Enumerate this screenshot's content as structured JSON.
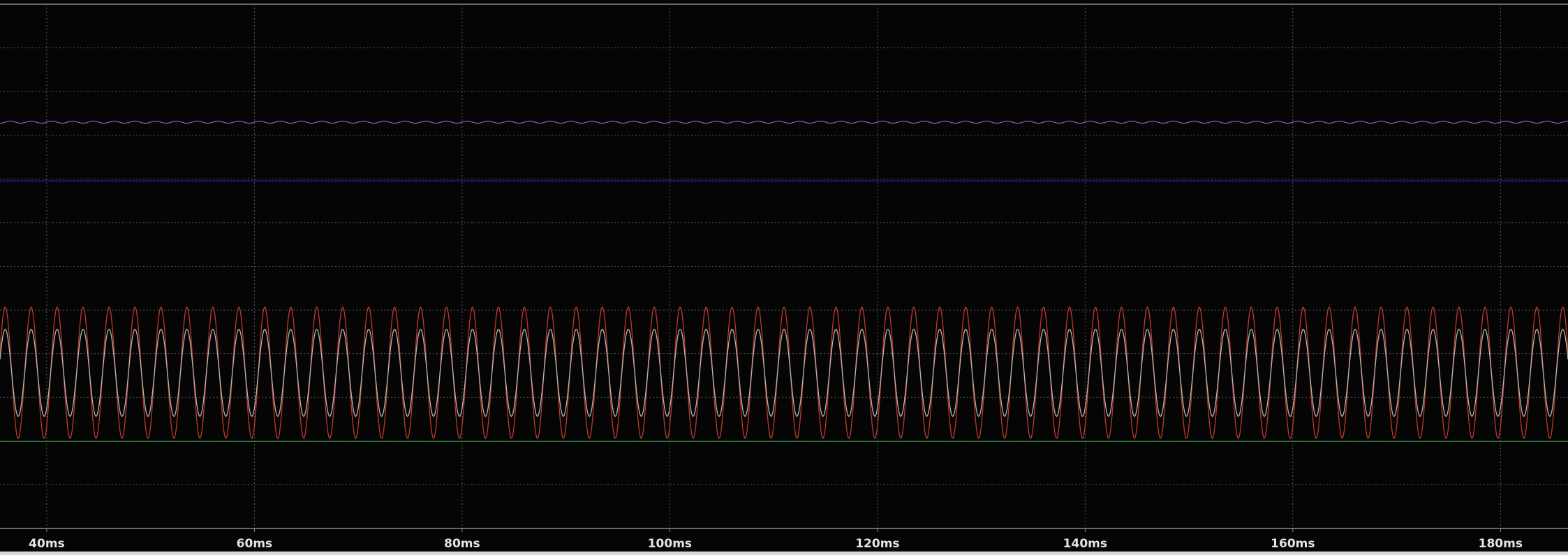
{
  "chart_data": {
    "type": "line",
    "title": "",
    "xlabel": "",
    "ylabel": "",
    "x_unit": "ms",
    "xlim": [
      35.5,
      186.5
    ],
    "x_ticks": [
      40,
      60,
      80,
      100,
      120,
      140,
      160,
      180
    ],
    "x_tick_labels": [
      "40ms",
      "60ms",
      "80ms",
      "100ms",
      "120ms",
      "140ms",
      "160ms",
      "180ms"
    ],
    "grid": true,
    "grid_style": "dotted",
    "series": [
      {
        "color": "#9f5cc0",
        "kind": "ripple",
        "level": 0.775,
        "ripple_amplitude": 0.002,
        "ripple_frequency_per_ms": 0.5
      },
      {
        "color": "#1f1fb8",
        "kind": "flat",
        "level": 0.663
      },
      {
        "color": "#c0392b",
        "kind": "sine",
        "center": 0.297,
        "amplitude": 0.125,
        "period_ms": 2.5,
        "phase_ms": 36.0
      },
      {
        "color": "#b5b5b5",
        "kind": "sine",
        "center": 0.297,
        "amplitude": 0.083,
        "period_ms": 2.5,
        "phase_ms": 36.0
      },
      {
        "color": "#2e8b3e",
        "kind": "flat",
        "level": 0.166
      }
    ]
  }
}
